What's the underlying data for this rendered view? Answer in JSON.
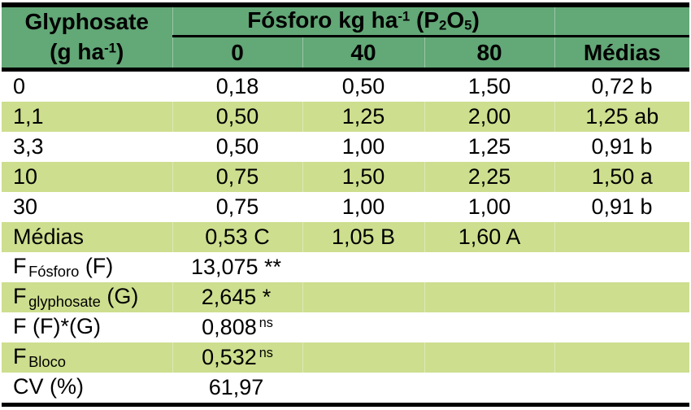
{
  "colors": {
    "header_green": "#63a877",
    "row_light_green": "#cdde8e",
    "row_white": "#ffffff",
    "border": "#000000",
    "text": "#000000"
  },
  "header": {
    "col1_line1": "Glyphosate",
    "col1_line2_pre": "(g ha",
    "col1_line2_sup": "-1",
    "col1_line2_post": ")",
    "group_pre": "Fósforo kg ha",
    "group_sup": "-1",
    "group_mid": " (P",
    "group_sub_a": "2",
    "group_o": "O",
    "group_sub_b": "5",
    "group_post": ")",
    "sub_cols": [
      "0",
      "40",
      "80",
      "Médias"
    ]
  },
  "chart_data": {
    "type": "table",
    "row_header": "Glyphosate (g ha⁻¹)",
    "column_group": "Fósforo kg ha⁻¹ (P₂O₅)",
    "columns": [
      "0",
      "40",
      "80",
      "Médias"
    ],
    "rows": [
      {
        "label": "0",
        "values": [
          "0,18",
          "0,50",
          "1,50",
          "0,72 b"
        ]
      },
      {
        "label": "1,1",
        "values": [
          "0,50",
          "1,25",
          "2,00",
          "1,25 ab"
        ]
      },
      {
        "label": "3,3",
        "values": [
          "0,50",
          "1,00",
          "1,25",
          "0,91 b"
        ]
      },
      {
        "label": "10",
        "values": [
          "0,75",
          "1,50",
          "2,25",
          "1,50 a"
        ]
      },
      {
        "label": "30",
        "values": [
          "0,75",
          "1,00",
          "1,00",
          "0,91 b"
        ]
      },
      {
        "label": "Médias",
        "values": [
          "0,53 C",
          "1,05 B",
          "1,60 A",
          ""
        ]
      }
    ],
    "stats": [
      {
        "label_main": "F",
        "label_sub": "Fósforo",
        "label_post": " (F)",
        "value": "13,075",
        "marker_plain": " **",
        "marker_sup": ""
      },
      {
        "label_main": "F",
        "label_sub": "glyphosate",
        "label_post": " (G)",
        "value": "2,645",
        "marker_plain": " *",
        "marker_sup": ""
      },
      {
        "label_main": "F (F)*(G)",
        "label_sub": "",
        "label_post": "",
        "value": "0,808",
        "marker_plain": "",
        "marker_sup": "ns"
      },
      {
        "label_main": "F",
        "label_sub": "Bloco",
        "label_post": "",
        "value": "0,532",
        "marker_plain": "",
        "marker_sup": "ns"
      },
      {
        "label_main": "CV (%)",
        "label_sub": "",
        "label_post": "",
        "value": "61,97",
        "marker_plain": "",
        "marker_sup": ""
      }
    ]
  }
}
